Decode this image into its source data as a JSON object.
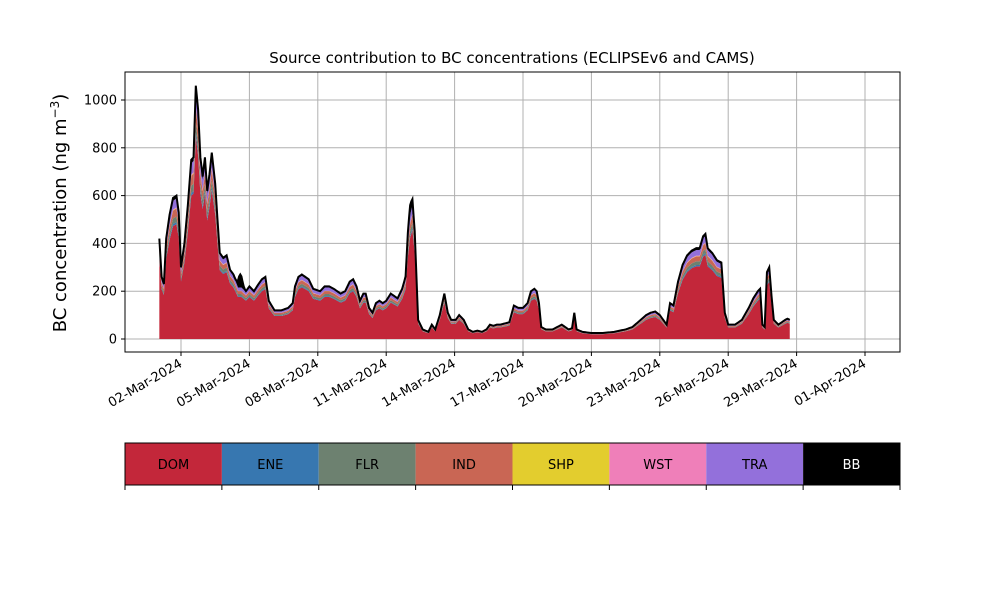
{
  "chart_data": {
    "type": "area",
    "stacked": true,
    "title": "Source contribution to BC concentrations (ECLIPSEv6 and CAMS)",
    "ylabel_main": "BC concentration (ng m",
    "ylabel_sup": "−3",
    "ylabel_tail": ")",
    "xlabel": "",
    "ylim": [
      -50,
      1110
    ],
    "xlim": [
      0,
      31.2
    ],
    "x_start_day": 1.05,
    "grid": true,
    "yticks": [
      0,
      200,
      400,
      600,
      800,
      1000
    ],
    "xticks": [
      {
        "day": 2,
        "label": "02-Mar-2024"
      },
      {
        "day": 5,
        "label": "05-Mar-2024"
      },
      {
        "day": 8,
        "label": "08-Mar-2024"
      },
      {
        "day": 11,
        "label": "11-Mar-2024"
      },
      {
        "day": 14,
        "label": "14-Mar-2024"
      },
      {
        "day": 17,
        "label": "17-Mar-2024"
      },
      {
        "day": 20,
        "label": "20-Mar-2024"
      },
      {
        "day": 23,
        "label": "23-Mar-2024"
      },
      {
        "day": 26,
        "label": "26-Mar-2024"
      },
      {
        "day": 29,
        "label": "29-Mar-2024"
      },
      {
        "day": 32,
        "label": "01-Apr-2024"
      }
    ],
    "total_keypoints": [
      [
        1.05,
        420
      ],
      [
        1.15,
        260
      ],
      [
        1.25,
        230
      ],
      [
        1.35,
        420
      ],
      [
        1.5,
        520
      ],
      [
        1.65,
        590
      ],
      [
        1.8,
        600
      ],
      [
        1.9,
        530
      ],
      [
        2.0,
        300
      ],
      [
        2.15,
        400
      ],
      [
        2.3,
        560
      ],
      [
        2.45,
        750
      ],
      [
        2.55,
        760
      ],
      [
        2.65,
        1060
      ],
      [
        2.75,
        960
      ],
      [
        2.85,
        760
      ],
      [
        2.95,
        680
      ],
      [
        3.05,
        760
      ],
      [
        3.15,
        620
      ],
      [
        3.25,
        690
      ],
      [
        3.35,
        780
      ],
      [
        3.5,
        650
      ],
      [
        3.6,
        500
      ],
      [
        3.7,
        360
      ],
      [
        3.85,
        340
      ],
      [
        4.0,
        350
      ],
      [
        4.15,
        290
      ],
      [
        4.3,
        270
      ],
      [
        4.5,
        220
      ],
      [
        4.65,
        220
      ],
      [
        4.85,
        200
      ],
      [
        5.0,
        220
      ],
      [
        5.2,
        200
      ],
      [
        5.4,
        230
      ],
      [
        5.55,
        250
      ],
      [
        5.7,
        260
      ],
      [
        5.85,
        160
      ],
      [
        6.1,
        120
      ],
      [
        6.4,
        120
      ],
      [
        6.7,
        130
      ],
      [
        6.9,
        150
      ],
      [
        7.0,
        220
      ],
      [
        7.15,
        260
      ],
      [
        7.3,
        270
      ],
      [
        7.45,
        260
      ],
      [
        7.6,
        250
      ],
      [
        7.8,
        210
      ],
      [
        8.1,
        200
      ],
      [
        8.3,
        220
      ],
      [
        8.5,
        220
      ],
      [
        8.7,
        210
      ],
      [
        9.0,
        190
      ],
      [
        9.2,
        200
      ],
      [
        9.4,
        240
      ],
      [
        9.55,
        250
      ],
      [
        9.7,
        220
      ],
      [
        9.85,
        160
      ],
      [
        10.0,
        190
      ],
      [
        10.1,
        190
      ],
      [
        10.25,
        130
      ],
      [
        10.4,
        110
      ],
      [
        10.55,
        150
      ],
      [
        10.7,
        160
      ],
      [
        10.85,
        150
      ],
      [
        11.0,
        160
      ],
      [
        11.2,
        190
      ],
      [
        11.5,
        170
      ],
      [
        11.7,
        210
      ],
      [
        11.85,
        260
      ],
      [
        11.95,
        430
      ],
      [
        12.05,
        530
      ],
      [
        12.15,
        570
      ],
      [
        12.25,
        450
      ],
      [
        12.4,
        80
      ],
      [
        12.6,
        40
      ],
      [
        12.85,
        30
      ],
      [
        13.0,
        60
      ],
      [
        13.15,
        40
      ],
      [
        13.35,
        100
      ],
      [
        13.55,
        190
      ],
      [
        13.7,
        110
      ],
      [
        13.85,
        80
      ],
      [
        14.05,
        80
      ],
      [
        14.2,
        100
      ],
      [
        14.4,
        80
      ],
      [
        14.6,
        40
      ],
      [
        14.8,
        30
      ],
      [
        15.0,
        35
      ],
      [
        15.2,
        30
      ],
      [
        15.4,
        40
      ],
      [
        15.55,
        60
      ],
      [
        15.7,
        55
      ],
      [
        15.85,
        60
      ],
      [
        16.0,
        60
      ],
      [
        16.2,
        65
      ],
      [
        16.4,
        70
      ],
      [
        16.6,
        140
      ],
      [
        16.8,
        130
      ],
      [
        17.0,
        130
      ],
      [
        17.2,
        150
      ],
      [
        17.35,
        200
      ],
      [
        17.5,
        210
      ],
      [
        17.6,
        200
      ],
      [
        17.7,
        150
      ],
      [
        17.8,
        50
      ],
      [
        18.0,
        40
      ],
      [
        18.3,
        40
      ],
      [
        18.5,
        50
      ],
      [
        18.7,
        60
      ],
      [
        18.85,
        50
      ],
      [
        19.0,
        40
      ],
      [
        19.15,
        45
      ],
      [
        19.25,
        110
      ],
      [
        19.35,
        40
      ],
      [
        19.6,
        30
      ],
      [
        20.0,
        25
      ],
      [
        20.5,
        25
      ],
      [
        21.0,
        30
      ],
      [
        21.5,
        40
      ],
      [
        21.8,
        50
      ],
      [
        22.1,
        75
      ],
      [
        22.4,
        100
      ],
      [
        22.6,
        110
      ],
      [
        22.8,
        115
      ],
      [
        23.0,
        100
      ],
      [
        23.15,
        80
      ],
      [
        23.3,
        60
      ],
      [
        23.45,
        150
      ],
      [
        23.6,
        140
      ],
      [
        23.8,
        240
      ],
      [
        24.0,
        310
      ],
      [
        24.2,
        350
      ],
      [
        24.4,
        370
      ],
      [
        24.6,
        380
      ],
      [
        24.75,
        380
      ],
      [
        24.9,
        430
      ],
      [
        25.0,
        440
      ],
      [
        25.1,
        380
      ],
      [
        25.3,
        360
      ],
      [
        25.5,
        330
      ],
      [
        25.7,
        320
      ],
      [
        25.85,
        110
      ],
      [
        26.0,
        60
      ],
      [
        26.3,
        60
      ],
      [
        26.6,
        80
      ],
      [
        26.9,
        130
      ],
      [
        27.1,
        170
      ],
      [
        27.3,
        200
      ],
      [
        27.4,
        210
      ],
      [
        27.5,
        60
      ],
      [
        27.6,
        50
      ],
      [
        27.7,
        280
      ],
      [
        27.8,
        300
      ],
      [
        27.9,
        180
      ],
      [
        28.0,
        80
      ],
      [
        28.2,
        60
      ],
      [
        28.5,
        80
      ],
      [
        28.6,
        85
      ],
      [
        28.7,
        80
      ]
    ],
    "shares": {
      "DOM": 0.8,
      "ENE": 0.015,
      "FLR": 0.04,
      "IND": 0.055,
      "SHP": 0.003,
      "WST": 0.005,
      "TRA": 0.062,
      "BB": 0.02
    },
    "bb_spikes": [
      {
        "day": 2.55,
        "extra": 0
      },
      {
        "day": 4.6,
        "extra": 50
      },
      {
        "day": 12.05,
        "extra": 30
      }
    ],
    "legend_position": "bottom",
    "legend": [
      {
        "name": "DOM",
        "color": "#c3273a"
      },
      {
        "name": "ENE",
        "color": "#3777b0"
      },
      {
        "name": "FLR",
        "color": "#6d8170"
      },
      {
        "name": "IND",
        "color": "#c96654"
      },
      {
        "name": "SHP",
        "color": "#e3cd2e"
      },
      {
        "name": "WST",
        "color": "#ef7fb9"
      },
      {
        "name": "TRA",
        "color": "#9370db"
      },
      {
        "name": "BB",
        "color": "#000000"
      }
    ],
    "grid_color": "#b0b0b0"
  }
}
